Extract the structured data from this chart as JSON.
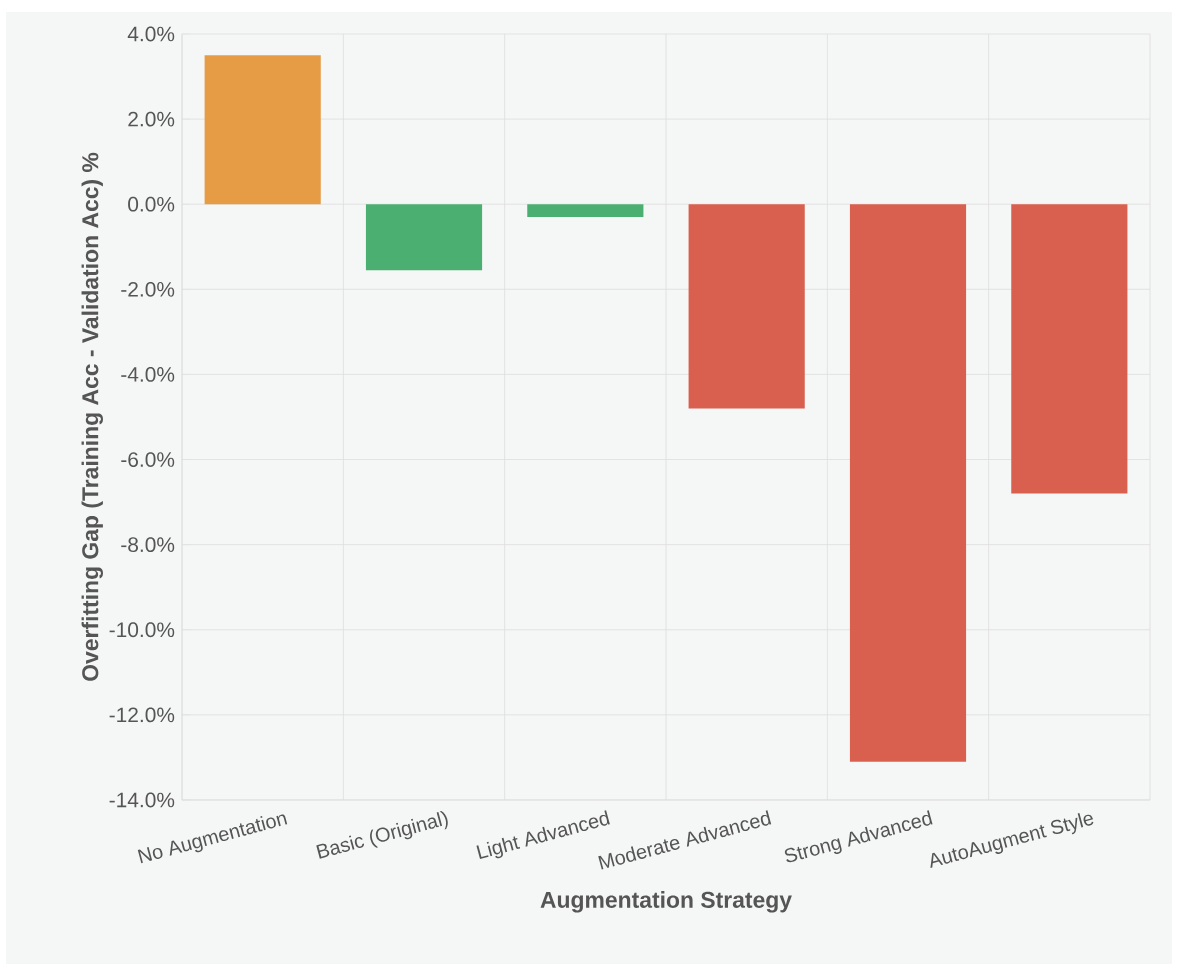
{
  "chart_data": {
    "type": "bar",
    "xlabel": "Augmentation Strategy",
    "ylabel": "Overfitting Gap (Training Acc - Validation Acc) %",
    "categories": [
      "No Augmentation",
      "Basic (Original)",
      "Light Advanced",
      "Moderate Advanced",
      "Strong Advanced",
      "AutoAugment Style"
    ],
    "values": [
      3.5,
      -1.55,
      -0.3,
      -4.8,
      -13.1,
      -6.8
    ],
    "colors": [
      "#e59c45",
      "#4caf72",
      "#4caf72",
      "#d95f4e",
      "#d95f4e",
      "#d95f4e"
    ],
    "ylim": [
      -14,
      4
    ],
    "yticks": [
      {
        "value": -14,
        "label": "-14.0%"
      },
      {
        "value": -12,
        "label": "-12.0%"
      },
      {
        "value": -10,
        "label": "-10.0%"
      },
      {
        "value": -8,
        "label": "-8.0%"
      },
      {
        "value": -6,
        "label": "-6.0%"
      },
      {
        "value": -4,
        "label": "-4.0%"
      },
      {
        "value": -2,
        "label": "-2.0%"
      },
      {
        "value": 0,
        "label": "0.0%"
      },
      {
        "value": 2,
        "label": "2.0%"
      },
      {
        "value": 4,
        "label": "4.0%"
      }
    ],
    "grid": true
  }
}
